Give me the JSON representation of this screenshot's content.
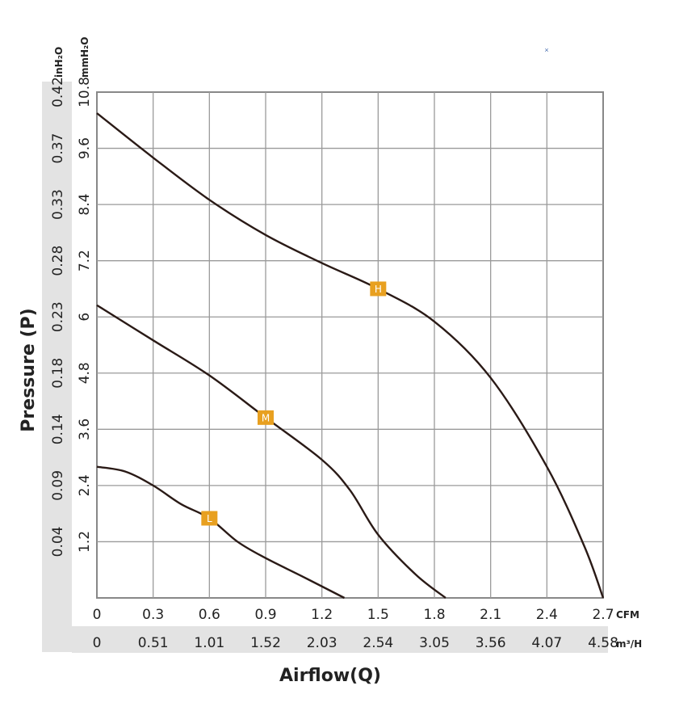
{
  "chart_data": {
    "type": "line",
    "ylabel": "Pressure (P)",
    "xlabel": "Airflow(Q)",
    "x_primary": {
      "unit": "CFM",
      "range": [
        0,
        2.7
      ],
      "ticks": [
        "0",
        "0.3",
        "0.6",
        "0.9",
        "1.2",
        "1.5",
        "1.8",
        "2.1",
        "2.4",
        "2.7"
      ]
    },
    "x_secondary": {
      "unit": "m³/H",
      "ticks": [
        "0",
        "0.51",
        "1.01",
        "1.52",
        "2.03",
        "2.54",
        "3.05",
        "3.56",
        "4.07",
        "4.58"
      ]
    },
    "y_primary": {
      "unit": "mmH₂O",
      "range": [
        0,
        10.8
      ],
      "ticks": [
        "1.2",
        "2.4",
        "3.6",
        "4.8",
        "6",
        "7.2",
        "8.4",
        "9.6",
        "10.8"
      ]
    },
    "y_secondary": {
      "unit": "inH₂O",
      "ticks": [
        "0.04",
        "0.09",
        "0.14",
        "0.18",
        "0.23",
        "0.28",
        "0.33",
        "0.37",
        "0.42"
      ]
    },
    "grid": true,
    "series": [
      {
        "name": "H",
        "color": "#2a1a16",
        "label_at": [
          1.5,
          6.6
        ],
        "points": [
          [
            0,
            10.35
          ],
          [
            0.3,
            9.4
          ],
          [
            0.6,
            8.5
          ],
          [
            0.9,
            7.75
          ],
          [
            1.2,
            7.15
          ],
          [
            1.5,
            6.6
          ],
          [
            1.8,
            5.9
          ],
          [
            2.1,
            4.7
          ],
          [
            2.4,
            2.8
          ],
          [
            2.6,
            1.1
          ],
          [
            2.7,
            0
          ]
        ]
      },
      {
        "name": "M",
        "color": "#2a1a16",
        "label_at": [
          0.9,
          3.85
        ],
        "points": [
          [
            0,
            6.25
          ],
          [
            0.3,
            5.5
          ],
          [
            0.6,
            4.75
          ],
          [
            0.9,
            3.85
          ],
          [
            1.2,
            2.95
          ],
          [
            1.35,
            2.3
          ],
          [
            1.5,
            1.35
          ],
          [
            1.7,
            0.5
          ],
          [
            1.86,
            0
          ]
        ]
      },
      {
        "name": "L",
        "color": "#2a1a16",
        "label_at": [
          0.6,
          1.7
        ],
        "points": [
          [
            0,
            2.8
          ],
          [
            0.15,
            2.7
          ],
          [
            0.3,
            2.4
          ],
          [
            0.45,
            2.0
          ],
          [
            0.6,
            1.7
          ],
          [
            0.75,
            1.2
          ],
          [
            0.9,
            0.85
          ],
          [
            1.1,
            0.45
          ],
          [
            1.32,
            0
          ]
        ]
      }
    ],
    "marker_color": "#e8a020",
    "annotation_mark": "×"
  }
}
